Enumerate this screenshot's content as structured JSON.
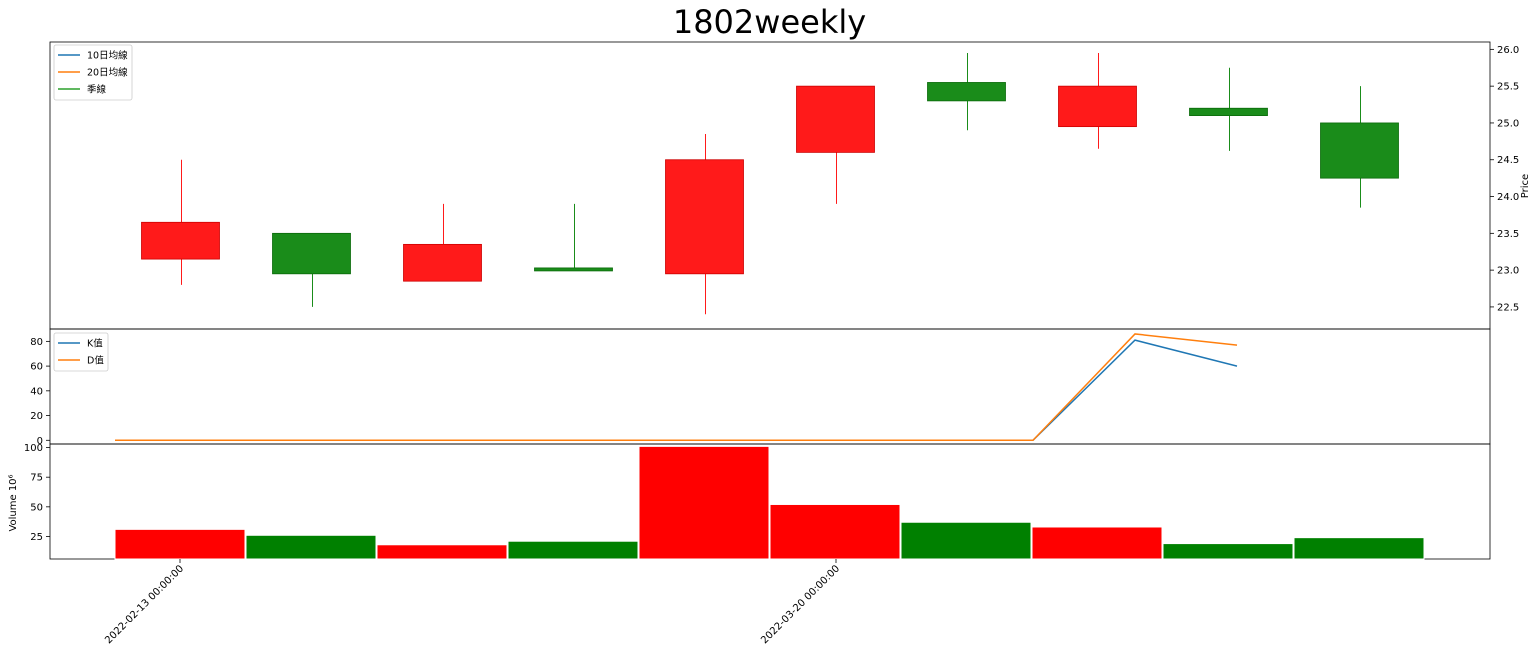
{
  "title": "1802weekly",
  "colors": {
    "up": "#ff1a1a",
    "down": "#1a8c1a",
    "volume_up": "#ff0000",
    "volume_down": "#008000",
    "k_line": "#1f77b4",
    "d_line": "#ff7f0e",
    "quarter_line": "#2ca02c"
  },
  "chart_data": [
    {
      "type": "candlestick",
      "panel": "price",
      "ylabel": "Price",
      "ylim": [
        22.2,
        26.1
      ],
      "yticks": [
        "22.5",
        "23.0",
        "23.5",
        "24.0",
        "24.5",
        "25.0",
        "25.5",
        "26.0"
      ],
      "y_axis_side": "right",
      "legend": [
        "10日均線",
        "20日均線",
        "季線"
      ],
      "legend_position": "top-left",
      "candles": [
        {
          "open": 23.15,
          "close": 23.65,
          "high": 24.5,
          "low": 22.8
        },
        {
          "open": 23.5,
          "close": 22.95,
          "high": 23.5,
          "low": 22.5
        },
        {
          "open": 22.85,
          "close": 23.35,
          "high": 23.9,
          "low": 22.85
        },
        {
          "open": 23.03,
          "close": 23.0,
          "high": 23.9,
          "low": 23.0
        },
        {
          "open": 22.95,
          "close": 24.5,
          "high": 24.85,
          "low": 22.4
        },
        {
          "open": 24.6,
          "close": 25.5,
          "high": 25.5,
          "low": 23.9
        },
        {
          "open": 25.55,
          "close": 25.3,
          "high": 25.95,
          "low": 24.9
        },
        {
          "open": 24.95,
          "close": 25.5,
          "high": 25.95,
          "low": 24.65
        },
        {
          "open": 25.2,
          "close": 25.1,
          "high": 25.75,
          "low": 24.62
        },
        {
          "open": 25.0,
          "close": 24.25,
          "high": 25.5,
          "low": 23.85
        }
      ]
    },
    {
      "type": "line",
      "panel": "kd",
      "ylim": [
        -3,
        90
      ],
      "yticks": [
        "0",
        "20",
        "40",
        "60",
        "80"
      ],
      "legend_position": "top-left",
      "x": [
        0,
        1,
        2,
        3,
        4,
        5,
        6,
        7,
        8,
        9,
        10,
        11
      ],
      "series": [
        {
          "name": "K值",
          "values": [
            0,
            0,
            0,
            0,
            0,
            0,
            0,
            0,
            0,
            0,
            81,
            60
          ]
        },
        {
          "name": "D值",
          "values": [
            0,
            0,
            0,
            0,
            0,
            0,
            0,
            0,
            0,
            0,
            86,
            77
          ]
        }
      ]
    },
    {
      "type": "bar",
      "panel": "volume",
      "ylabel": "Volume  10⁶",
      "ylim": [
        6,
        103
      ],
      "yticks": [
        "25",
        "50",
        "75",
        "100"
      ],
      "values": [
        31,
        26,
        18,
        21,
        101,
        52,
        37,
        33,
        19,
        24
      ],
      "directions": [
        "up",
        "down",
        "up",
        "down",
        "up",
        "up",
        "down",
        "up",
        "down",
        "down"
      ]
    }
  ],
  "x_axis": {
    "tick_labels": [
      "2022-02-13 00:00:00",
      "2022-03-20 00:00:00"
    ]
  }
}
